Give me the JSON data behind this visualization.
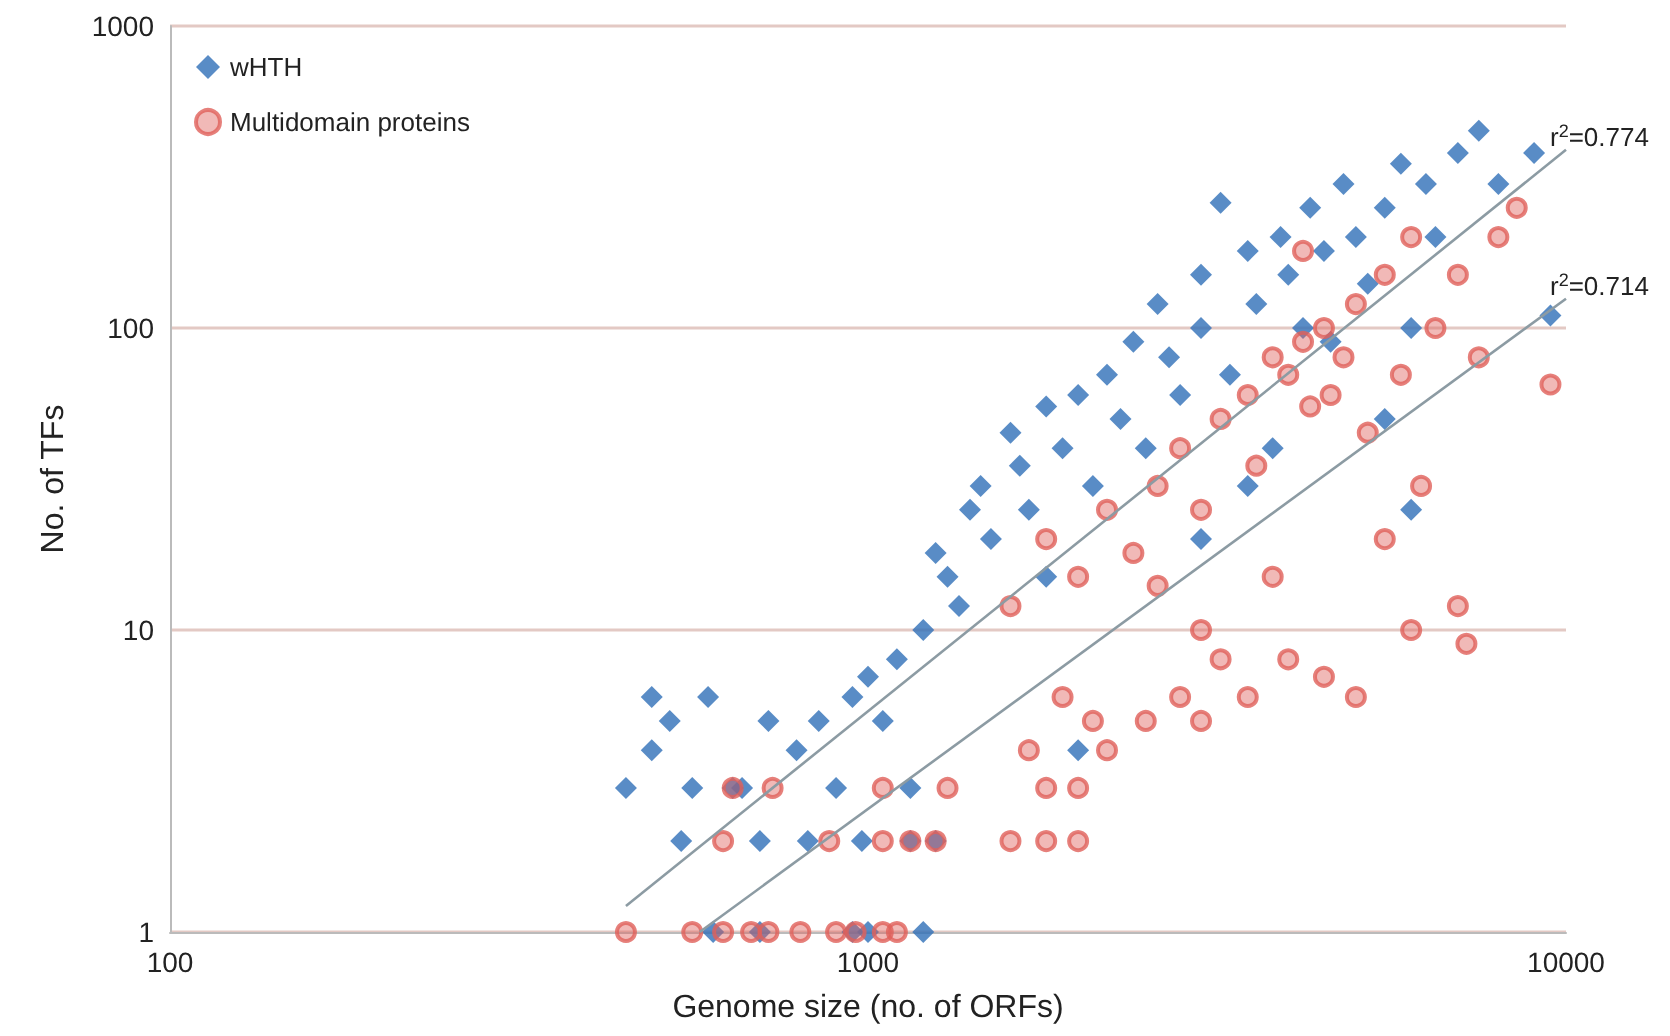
{
  "chart_data": {
    "type": "scatter",
    "xlabel": "Genome size (no. of ORFs)",
    "ylabel": "No. of TFs",
    "log": "xy",
    "xlim": [
      100,
      10000
    ],
    "xticks": [
      100,
      1000,
      10000
    ],
    "ylim": [
      1,
      1000
    ],
    "yticks": [
      1,
      10,
      100,
      1000
    ],
    "grid": "y",
    "legend": "top left",
    "series": [
      {
        "name": "wHTH",
        "color": "#2f6fb8",
        "marker": "diamond",
        "x": [
          450,
          490,
          490,
          520,
          540,
          560,
          590,
          640,
          660,
          700,
          720,
          790,
          820,
          850,
          900,
          950,
          980,
          1000,
          1050,
          1100,
          1150,
          1200,
          1250,
          1300,
          1350,
          1400,
          1450,
          1500,
          1600,
          1650,
          1700,
          1800,
          1800,
          1900,
          2000,
          2000,
          2100,
          2200,
          2300,
          2400,
          2500,
          2600,
          2700,
          2800,
          3000,
          3000,
          3200,
          3300,
          3500,
          3600,
          3800,
          3900,
          4000,
          4200,
          4300,
          4500,
          4600,
          4800,
          5000,
          5200,
          5500,
          5800,
          6000,
          6000,
          6300,
          6500,
          7000,
          7500,
          8000,
          9000,
          9500,
          1000,
          950,
          700,
          600,
          1200,
          1150,
          1250,
          3000,
          3500,
          5500
        ],
        "values": [
          3,
          4,
          6,
          5,
          2,
          3,
          6,
          3,
          3,
          2,
          5,
          4,
          2,
          5,
          3,
          6,
          2,
          7,
          5,
          8,
          3,
          10,
          18,
          15,
          12,
          25,
          30,
          20,
          45,
          35,
          25,
          55,
          15,
          40,
          60,
          4,
          30,
          70,
          50,
          90,
          40,
          120,
          80,
          60,
          150,
          100,
          260,
          70,
          180,
          120,
          40,
          200,
          150,
          100,
          250,
          180,
          90,
          300,
          200,
          140,
          250,
          350,
          25,
          100,
          300,
          200,
          380,
          450,
          300,
          380,
          110,
          1,
          1,
          1,
          1,
          1,
          2,
          2,
          20,
          30,
          50
        ]
      },
      {
        "name": "Multidomain proteins",
        "color": "#e0605a",
        "marker": "circle",
        "x": [
          450,
          560,
          620,
          680,
          720,
          800,
          900,
          960,
          1050,
          1100,
          1250,
          1150,
          1050,
          880,
          620,
          640,
          730,
          1050,
          1300,
          1600,
          1800,
          2000,
          1800,
          2000,
          1700,
          2100,
          1900,
          2200,
          2500,
          2800,
          3000,
          3200,
          3500,
          4000,
          4500,
          5000,
          6000,
          7200,
          7000,
          1600,
          1800,
          2000,
          2200,
          2400,
          2600,
          2800,
          3000,
          3200,
          3500,
          3600,
          3800,
          4000,
          4200,
          4300,
          4500,
          4600,
          4800,
          5000,
          5200,
          5500,
          5800,
          6000,
          6200,
          6500,
          7000,
          7500,
          8000,
          8500,
          9500,
          3000,
          3800,
          5500,
          2600,
          4200
        ],
        "values": [
          1,
          1,
          1,
          1,
          1,
          1,
          1,
          1,
          1,
          1,
          2,
          2,
          2,
          2,
          2,
          3,
          3,
          3,
          3,
          2,
          2,
          2,
          3,
          3,
          4,
          5,
          6,
          4,
          5,
          6,
          5,
          8,
          6,
          8,
          7,
          6,
          10,
          9,
          12,
          12,
          20,
          15,
          25,
          18,
          30,
          40,
          25,
          50,
          60,
          35,
          80,
          70,
          90,
          55,
          100,
          60,
          80,
          120,
          45,
          150,
          70,
          200,
          30,
          100,
          150,
          80,
          200,
          250,
          65,
          10,
          15,
          20,
          14,
          180
        ]
      },
      {
        "type": "line",
        "color": "#8c9ba3",
        "line_style": "solid",
        "marker": "none",
        "x": [
          450,
          10000
        ],
        "values": [
          1.22,
          389
        ]
      },
      {
        "type": "line",
        "color": "#8c9ba3",
        "line_style": "solid",
        "marker": "none",
        "x": [
          574,
          10000
        ],
        "values": [
          1,
          125
        ]
      }
    ],
    "annotations": [
      {
        "text": "r$^{2}$=0.774",
        "x": 10000,
        "y": 389
      },
      {
        "text": "r$^{2}$=0.714",
        "x": 10000,
        "y": 125
      }
    ]
  }
}
